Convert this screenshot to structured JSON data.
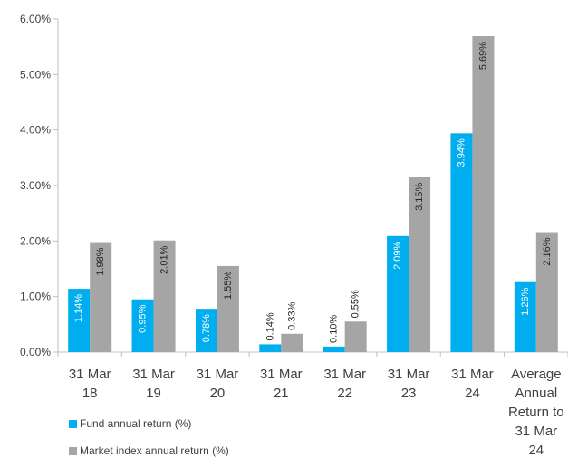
{
  "chart_data": {
    "type": "bar",
    "categories": [
      [
        "31 Mar",
        "18"
      ],
      [
        "31 Mar",
        "19"
      ],
      [
        "31 Mar",
        "20"
      ],
      [
        "31 Mar",
        "21"
      ],
      [
        "31 Mar",
        "22"
      ],
      [
        "31 Mar",
        "23"
      ],
      [
        "31 Mar",
        "24"
      ],
      [
        "Average",
        "Annual",
        "Return to",
        "31 Mar",
        "24"
      ]
    ],
    "series": [
      {
        "name": "Fund annual return (%)",
        "color": "#00AEEF",
        "values": [
          1.14,
          0.95,
          0.78,
          0.14,
          0.1,
          2.09,
          3.94,
          1.26
        ],
        "labels": [
          "1.14%",
          "0.95%",
          "0.78%",
          "0.14%",
          "0.10%",
          "2.09%",
          "3.94%",
          "1.26%"
        ]
      },
      {
        "name": "Market index annual return (%)",
        "color": "#A5A5A5",
        "values": [
          1.98,
          2.01,
          1.55,
          0.33,
          0.55,
          3.15,
          5.69,
          2.16
        ],
        "labels": [
          "1.98%",
          "2.01%",
          "1.55%",
          "0.33%",
          "0.55%",
          "3.15%",
          "5.69%",
          "2.16%"
        ]
      }
    ],
    "ylim": [
      0,
      6
    ],
    "yticks": [
      {
        "value": 0,
        "label": "0.00%"
      },
      {
        "value": 1,
        "label": "1.00%"
      },
      {
        "value": 2,
        "label": "2.00%"
      },
      {
        "value": 3,
        "label": "3.00%"
      },
      {
        "value": 4,
        "label": "4.00%"
      },
      {
        "value": 5,
        "label": "5.00%"
      },
      {
        "value": 6,
        "label": "6.00%"
      }
    ],
    "grid": false,
    "legend_position": "bottom-left"
  }
}
